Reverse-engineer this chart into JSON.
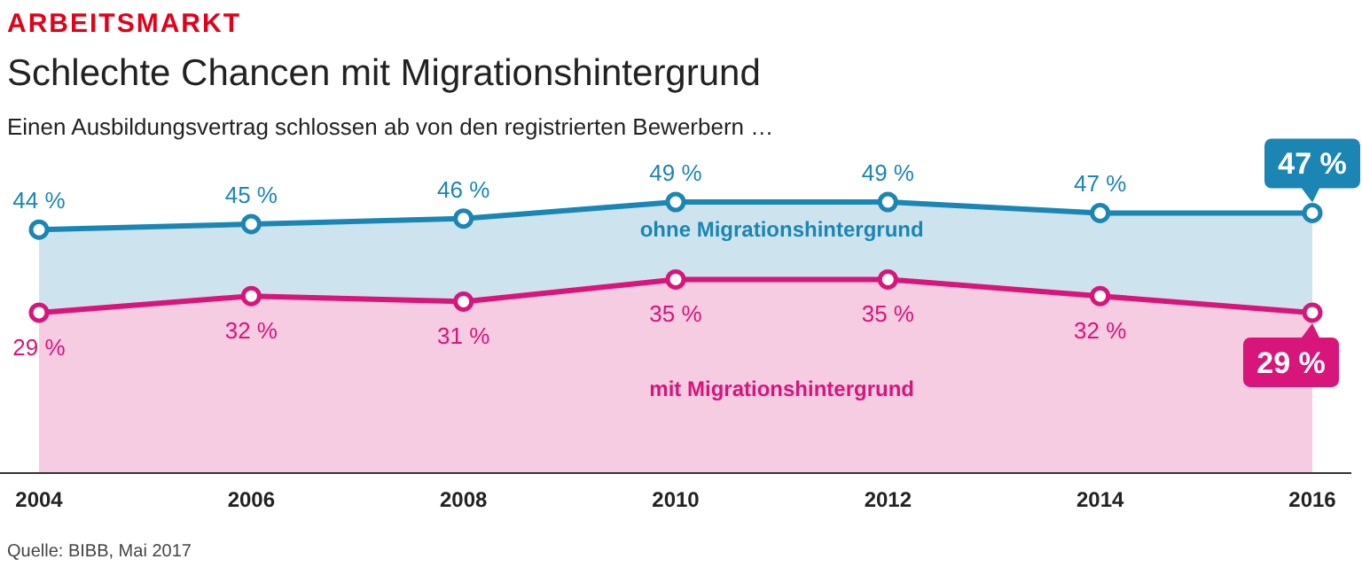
{
  "chart_data": {
    "type": "area",
    "title": "Schlechte Chancen mit Migrationshintergrund",
    "subtitle": "Einen Ausbildungsvertrag schlossen ab von den registrierten Bewerbern …",
    "annotations": [
      "ARBEITSMARKT",
      "Quelle: BIBB, Mai 2017"
    ],
    "x": [
      2004,
      2006,
      2008,
      2010,
      2012,
      2014,
      2016
    ],
    "xlim": [
      2004,
      2016
    ],
    "xticks": [
      2004,
      2006,
      2008,
      2010,
      2012,
      2014,
      2016
    ],
    "tick_labels": "x",
    "marker": "circle",
    "series": [
      {
        "name": "ohne Migrationshintergrund",
        "color": "#1b86b4",
        "values": [
          44,
          45,
          46,
          49,
          49,
          47,
          47
        ],
        "value_labels": [
          "44 %",
          "45 %",
          "46 %",
          "49 %",
          "49 %",
          "47 %",
          "47 %"
        ]
      },
      {
        "name": "mit Migrationshintergrund",
        "color": "#d7157b",
        "values": [
          29,
          32,
          31,
          35,
          35,
          32,
          29
        ],
        "value_labels": [
          "29 %",
          "32 %",
          "31 %",
          "35 %",
          "35 %",
          "32 %",
          "29 %"
        ]
      }
    ]
  }
}
